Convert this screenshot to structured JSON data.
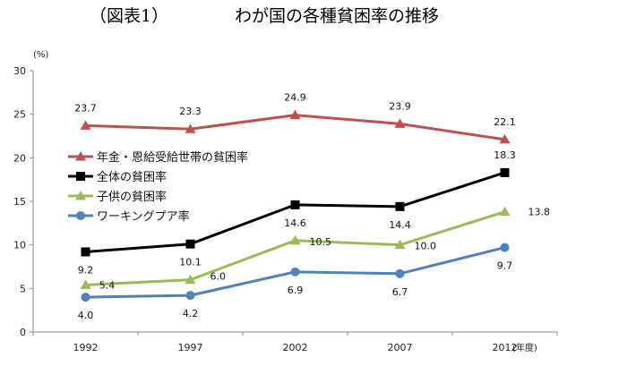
{
  "chart_data": {
    "type": "line",
    "title_left": "（図表1）",
    "title": "わが国の各種貧困率の推移",
    "y_unit": "(%)",
    "x_unit": "(年度)",
    "categories": [
      "1992",
      "1997",
      "2002",
      "2007",
      "2012"
    ],
    "ylim": [
      0,
      30
    ],
    "yticks": [
      0,
      5,
      10,
      15,
      20,
      25,
      30
    ],
    "grid": false,
    "legend_position": "left-middle",
    "series": [
      {
        "name": "年金・恩給受給世帯の貧困率",
        "color": "#c0504d",
        "marker": "triangle",
        "values": [
          23.7,
          23.3,
          24.9,
          23.9,
          22.1
        ],
        "labels": [
          "23.7",
          "23.3",
          "24.9",
          "23.9",
          "22.1"
        ]
      },
      {
        "name": "全体の貧困率",
        "color": "#000000",
        "marker": "square",
        "values": [
          9.2,
          10.1,
          14.6,
          14.4,
          18.3
        ],
        "labels": [
          "9.2",
          "10.1",
          "14.6",
          "14.4",
          "18.3"
        ]
      },
      {
        "name": "子供の貧困率",
        "color": "#9bbb59",
        "marker": "triangle",
        "values": [
          5.4,
          6.0,
          10.5,
          10.0,
          13.8
        ],
        "labels": [
          "5.4",
          "6.0",
          "10.5",
          "10.0",
          "13.8"
        ]
      },
      {
        "name": "ワーキングプア率",
        "color": "#4f81bd",
        "marker": "circle",
        "values": [
          4.0,
          4.2,
          6.9,
          6.7,
          9.7
        ],
        "labels": [
          "4.0",
          "4.2",
          "6.9",
          "6.7",
          "9.7"
        ]
      }
    ]
  }
}
